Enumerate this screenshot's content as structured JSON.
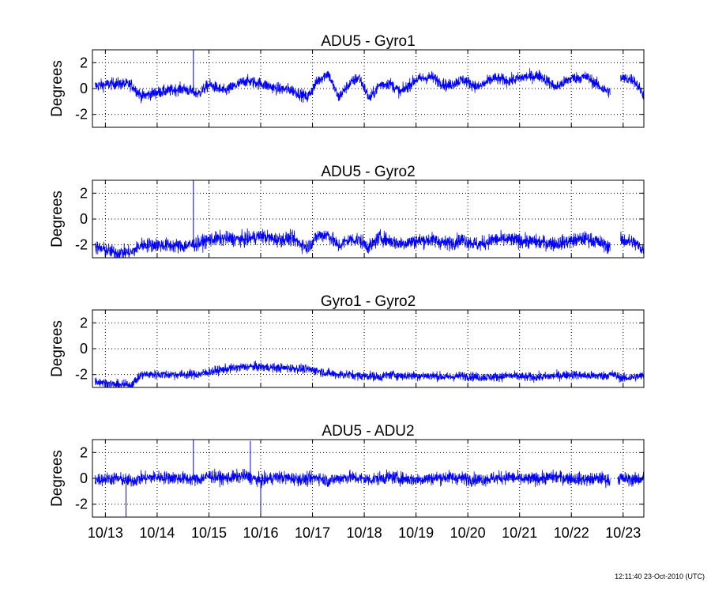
{
  "timestamp": "12:11:40 23-Oct-2010 (UTC)",
  "chart_data": [
    {
      "type": "line",
      "title": "ADU5 - Gyro1",
      "ylabel": "Degrees",
      "ylim": [
        -3,
        3
      ],
      "yticks": [
        -2,
        0,
        2
      ],
      "xlim": [
        12.75,
        23.4
      ],
      "series_color": "#0000ff",
      "gaps": [
        [
          22.75,
          22.95
        ]
      ],
      "spikes": [
        {
          "x": 14.7,
          "y": 3
        }
      ],
      "series": [
        {
          "x": [
            12.8,
            13.2,
            13.5,
            13.7,
            14.0,
            14.5,
            14.8,
            15.0,
            15.3,
            15.7,
            16.0,
            16.3,
            16.6,
            16.9,
            17.1,
            17.3,
            17.5,
            17.7,
            17.9,
            18.1,
            18.3,
            18.5,
            18.7,
            19.0,
            19.3,
            19.6,
            19.9,
            20.2,
            20.5,
            20.8,
            21.1,
            21.4,
            21.7,
            22.0,
            22.3,
            22.6,
            22.75,
            22.95,
            23.2,
            23.4
          ],
          "y": [
            0.2,
            0.4,
            0.3,
            -0.6,
            -0.3,
            0.0,
            -0.4,
            0.3,
            -0.2,
            0.6,
            0.4,
            0.0,
            -0.1,
            -0.7,
            0.6,
            1.2,
            -0.7,
            0.3,
            0.9,
            -0.8,
            0.3,
            0.4,
            -0.3,
            0.7,
            0.9,
            0.2,
            0.7,
            0.1,
            0.8,
            0.6,
            0.9,
            1.0,
            0.1,
            0.8,
            0.9,
            0.0,
            -0.3,
            0.8,
            0.7,
            -0.5
          ]
        }
      ]
    },
    {
      "type": "line",
      "title": "ADU5 - Gyro2",
      "ylabel": "Degrees",
      "ylim": [
        -3,
        3
      ],
      "yticks": [
        -2,
        0,
        2
      ],
      "xlim": [
        12.75,
        23.4
      ],
      "series_color": "#0000ff",
      "gaps": [
        [
          22.75,
          22.95
        ]
      ],
      "spikes": [
        {
          "x": 14.7,
          "y": 3
        }
      ],
      "series": [
        {
          "x": [
            12.8,
            13.2,
            13.5,
            13.7,
            14.0,
            14.5,
            14.8,
            15.0,
            15.3,
            15.7,
            16.0,
            16.3,
            16.6,
            16.9,
            17.1,
            17.3,
            17.5,
            17.7,
            17.9,
            18.1,
            18.3,
            18.5,
            18.7,
            19.0,
            19.3,
            19.6,
            19.9,
            20.2,
            20.5,
            20.8,
            21.1,
            21.4,
            21.7,
            22.0,
            22.3,
            22.6,
            22.75,
            22.95,
            23.2,
            23.4
          ],
          "y": [
            -2.2,
            -2.6,
            -2.6,
            -2.0,
            -2.0,
            -2.1,
            -1.9,
            -1.6,
            -1.5,
            -1.6,
            -1.3,
            -1.6,
            -1.5,
            -2.2,
            -1.3,
            -1.2,
            -2.1,
            -1.6,
            -1.6,
            -2.2,
            -1.4,
            -1.7,
            -1.9,
            -1.7,
            -1.6,
            -1.9,
            -1.6,
            -2.0,
            -1.6,
            -1.6,
            -1.7,
            -1.8,
            -1.9,
            -1.7,
            -1.5,
            -1.9,
            -2.2,
            -1.6,
            -1.8,
            -2.4
          ]
        }
      ]
    },
    {
      "type": "line",
      "title": "Gyro1 - Gyro2",
      "ylabel": "Degrees",
      "ylim": [
        -3,
        3
      ],
      "yticks": [
        -2,
        0,
        2
      ],
      "xlim": [
        12.75,
        23.4
      ],
      "series_color": "#0000ff",
      "gaps": [],
      "spikes": [],
      "series": [
        {
          "x": [
            12.8,
            13.2,
            13.5,
            13.7,
            14.0,
            14.5,
            14.8,
            15.0,
            15.3,
            15.7,
            16.0,
            16.3,
            16.6,
            16.9,
            17.1,
            17.3,
            17.5,
            17.7,
            17.9,
            18.1,
            18.3,
            18.5,
            18.7,
            19.0,
            19.3,
            19.6,
            19.9,
            20.2,
            20.5,
            20.8,
            21.1,
            21.4,
            21.7,
            22.0,
            22.3,
            22.6,
            22.8,
            23.0,
            23.2,
            23.4
          ],
          "y": [
            -2.5,
            -2.8,
            -2.8,
            -2.0,
            -2.0,
            -2.0,
            -2.0,
            -1.8,
            -1.6,
            -1.4,
            -1.4,
            -1.5,
            -1.5,
            -1.6,
            -1.7,
            -1.9,
            -2.0,
            -2.0,
            -2.1,
            -2.1,
            -2.2,
            -2.0,
            -2.1,
            -2.1,
            -2.1,
            -2.2,
            -2.1,
            -2.2,
            -2.2,
            -2.1,
            -2.2,
            -2.2,
            -2.1,
            -2.0,
            -2.1,
            -2.1,
            -2.0,
            -2.3,
            -2.2,
            -2.1
          ]
        }
      ]
    },
    {
      "type": "line",
      "title": "ADU5 - ADU2",
      "ylabel": "Degrees",
      "ylim": [
        -3,
        3
      ],
      "yticks": [
        -2,
        0,
        2
      ],
      "xlim": [
        12.75,
        23.4
      ],
      "series_color": "#0000ff",
      "gaps": [
        [
          22.75,
          22.9
        ]
      ],
      "spikes": [
        {
          "x": 14.7,
          "y": 3
        },
        {
          "x": 13.4,
          "y": -3
        },
        {
          "x": 15.8,
          "y": 2.9
        },
        {
          "x": 16.0,
          "y": -3
        }
      ],
      "xticks": [
        "10/13",
        "10/14",
        "10/15",
        "10/16",
        "10/17",
        "10/18",
        "10/19",
        "10/20",
        "10/21",
        "10/22",
        "10/23"
      ],
      "series": [
        {
          "x": [
            12.8,
            13.2,
            13.5,
            13.7,
            14.0,
            14.5,
            14.8,
            15.0,
            15.3,
            15.7,
            16.0,
            16.3,
            16.6,
            16.9,
            17.1,
            17.3,
            17.5,
            17.7,
            17.9,
            18.1,
            18.3,
            18.5,
            18.7,
            19.0,
            19.3,
            19.6,
            19.9,
            20.2,
            20.5,
            20.8,
            21.1,
            21.4,
            21.7,
            22.0,
            22.3,
            22.6,
            22.75,
            22.95,
            23.2,
            23.4
          ],
          "y": [
            -0.1,
            0.0,
            -0.2,
            0.0,
            0.1,
            0.0,
            -0.1,
            0.2,
            0.0,
            0.2,
            -0.2,
            0.1,
            0.0,
            -0.1,
            0.1,
            -0.2,
            0.0,
            0.1,
            0.0,
            -0.1,
            0.0,
            0.1,
            0.0,
            -0.1,
            0.0,
            0.1,
            0.0,
            -0.1,
            0.0,
            0.1,
            -0.1,
            0.0,
            0.1,
            0.0,
            -0.1,
            0.0,
            -0.2,
            0.0,
            -0.1,
            0.0
          ]
        }
      ]
    }
  ]
}
